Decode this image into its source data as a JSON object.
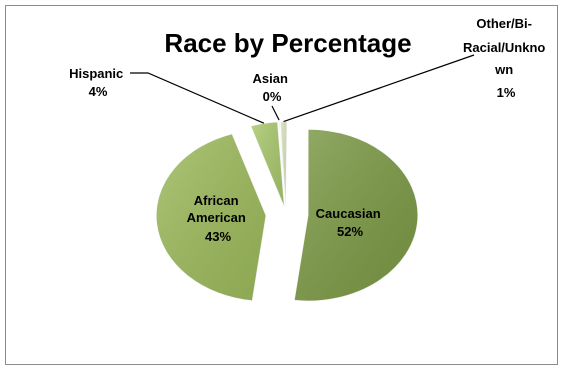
{
  "chart_data": {
    "type": "pie",
    "title": "Race by Percentage",
    "slices": [
      {
        "label": "Caucasian",
        "value": 52,
        "display": "52%",
        "color": "#7c9a45"
      },
      {
        "label": "African American",
        "value": 43,
        "display": "43%",
        "color": "#9dbb5c"
      },
      {
        "label": "Hispanic",
        "value": 4,
        "display": "4%",
        "color": "#a8c86c"
      },
      {
        "label": "Asian",
        "value": 0,
        "display": "0%",
        "color": "#b5d27d"
      },
      {
        "label": "Other/Bi-Racial/Unknown",
        "value": 1,
        "display": "1%",
        "color": "#d8e4bc"
      }
    ],
    "legend": "none"
  }
}
